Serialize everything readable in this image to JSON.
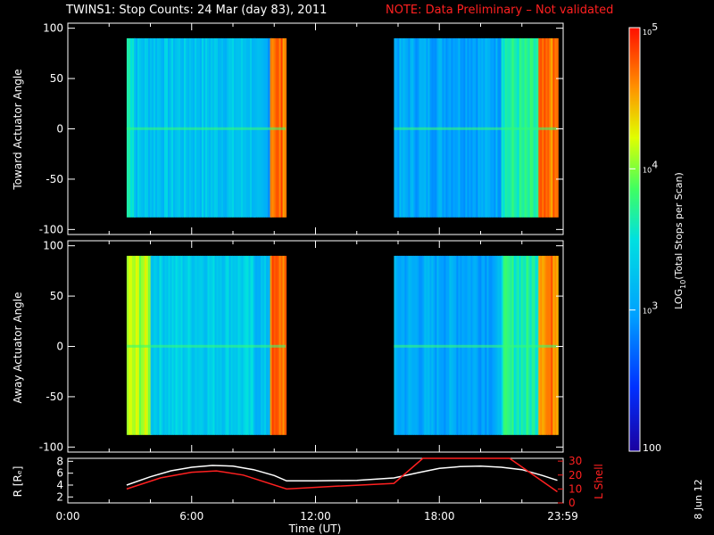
{
  "title": "TWINS1: Stop Counts: 24 Mar (day  83), 2011",
  "note": "NOTE: Data Preliminary – Not validated",
  "date_stamp": "8 Jun 12",
  "colors": {
    "background": "#000000",
    "foreground": "#ffffff",
    "note": "#ff2020",
    "lshell_line": "#ff2020",
    "r_line": "#ffffff"
  },
  "chart_data": [
    {
      "type": "heatmap",
      "panel": "top",
      "ylabel": "Toward Actuator Angle",
      "yticks": [
        -100,
        -50,
        0,
        50,
        100
      ],
      "ylim": [
        -105,
        105
      ],
      "xlim_hours": [
        0,
        24
      ],
      "data_y_range": [
        -88,
        90
      ],
      "data_intervals_hours": [
        [
          2.85,
          10.55
        ],
        [
          15.8,
          23.72
        ]
      ],
      "colorscale": "rainbow",
      "description_bands": [
        {
          "start_h": 2.85,
          "end_h": 3.2,
          "level": 0.55
        },
        {
          "start_h": 3.2,
          "end_h": 9.0,
          "level": 0.42
        },
        {
          "start_h": 9.0,
          "end_h": 9.8,
          "level": 0.35
        },
        {
          "start_h": 9.8,
          "end_h": 10.55,
          "level": 0.9
        },
        {
          "start_h": 15.8,
          "end_h": 21.0,
          "level": 0.35
        },
        {
          "start_h": 21.0,
          "end_h": 22.8,
          "level": 0.55
        },
        {
          "start_h": 22.8,
          "end_h": 23.72,
          "level": 0.88
        }
      ]
    },
    {
      "type": "heatmap",
      "panel": "middle",
      "ylabel": "Away Actuator Angle",
      "yticks": [
        -100,
        -50,
        0,
        50,
        100
      ],
      "ylim": [
        -105,
        105
      ],
      "xlim_hours": [
        0,
        24
      ],
      "data_y_range": [
        -88,
        90
      ],
      "data_intervals_hours": [
        [
          2.85,
          10.55
        ],
        [
          15.8,
          23.72
        ]
      ],
      "colorscale": "rainbow",
      "description_bands": [
        {
          "start_h": 2.85,
          "end_h": 4.0,
          "level": 0.7
        },
        {
          "start_h": 4.0,
          "end_h": 9.0,
          "level": 0.45
        },
        {
          "start_h": 9.0,
          "end_h": 9.8,
          "level": 0.4
        },
        {
          "start_h": 9.8,
          "end_h": 10.55,
          "level": 0.9
        },
        {
          "start_h": 15.8,
          "end_h": 21.0,
          "level": 0.35
        },
        {
          "start_h": 21.0,
          "end_h": 22.8,
          "level": 0.55
        },
        {
          "start_h": 22.8,
          "end_h": 23.72,
          "level": 0.88
        }
      ]
    },
    {
      "type": "line",
      "panel": "bottom",
      "ylabel_left": "R [Rₑ]",
      "ylabel_right": "L Shell",
      "xlabel": "Time (UT)",
      "xticks": [
        "0:00",
        "6:00",
        "12:00",
        "18:00",
        "23:59"
      ],
      "xtick_hours": [
        0,
        6,
        12,
        18,
        23.98
      ],
      "yticks_left": [
        2,
        4,
        6,
        8
      ],
      "ylim_left": [
        1,
        8.5
      ],
      "yticks_right": [
        0,
        10,
        20,
        30
      ],
      "ylim_right": [
        0,
        32
      ],
      "series": [
        {
          "axis": "left",
          "x": [
            2.85,
            4,
            5,
            6,
            7,
            8,
            9,
            10,
            10.6,
            12,
            14,
            15.8,
            17,
            18,
            19,
            20,
            21,
            22,
            23,
            23.72
          ],
          "y": [
            4.0,
            5.4,
            6.4,
            7.0,
            7.3,
            7.2,
            6.6,
            5.6,
            4.7,
            4.7,
            4.8,
            5.2,
            6.1,
            6.8,
            7.1,
            7.2,
            7.0,
            6.6,
            5.6,
            4.8
          ]
        },
        {
          "axis": "right",
          "x": [
            2.85,
            4.5,
            6,
            7.2,
            8.5,
            10.6,
            13,
            15.8,
            17.2,
            21.4,
            23.72
          ],
          "y": [
            10.0,
            18.0,
            22.0,
            23.0,
            20.0,
            10.0,
            12.0,
            14.0,
            32.0,
            32.0,
            8.0
          ]
        }
      ]
    },
    {
      "type": "colorbar",
      "label": "LOG10(Total Stops per Scan)",
      "label_main": "LOG",
      "label_sub": "10",
      "label_rest": "(Total Stops per Scan)",
      "ticks": [
        {
          "base": "10",
          "exp": "5",
          "value": 100000
        },
        {
          "base": "10",
          "exp": "4",
          "value": 10000
        },
        {
          "base": "10",
          "exp": "3",
          "value": 1000
        },
        {
          "base": "100",
          "exp": "",
          "value": 100
        }
      ],
      "scale": "log",
      "range": [
        100,
        100000
      ]
    }
  ]
}
